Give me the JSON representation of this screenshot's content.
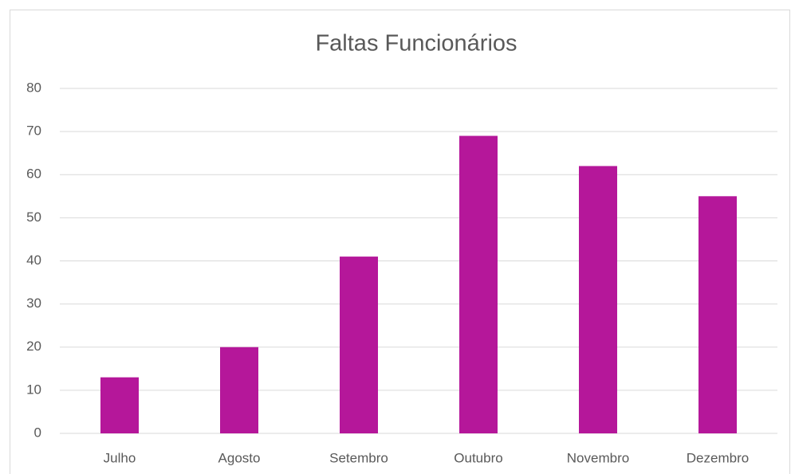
{
  "chart_data": {
    "type": "bar",
    "title": "Faltas Funcionários",
    "categories": [
      "Julho",
      "Agosto",
      "Setembro",
      "Outubro",
      "Novembro",
      "Dezembro"
    ],
    "values": [
      13,
      20,
      41,
      69,
      62,
      55
    ],
    "color": "#b5179a",
    "ylim": [
      0,
      80
    ],
    "yticks": [
      0,
      10,
      20,
      30,
      40,
      50,
      60,
      70,
      80
    ],
    "grid": true
  }
}
